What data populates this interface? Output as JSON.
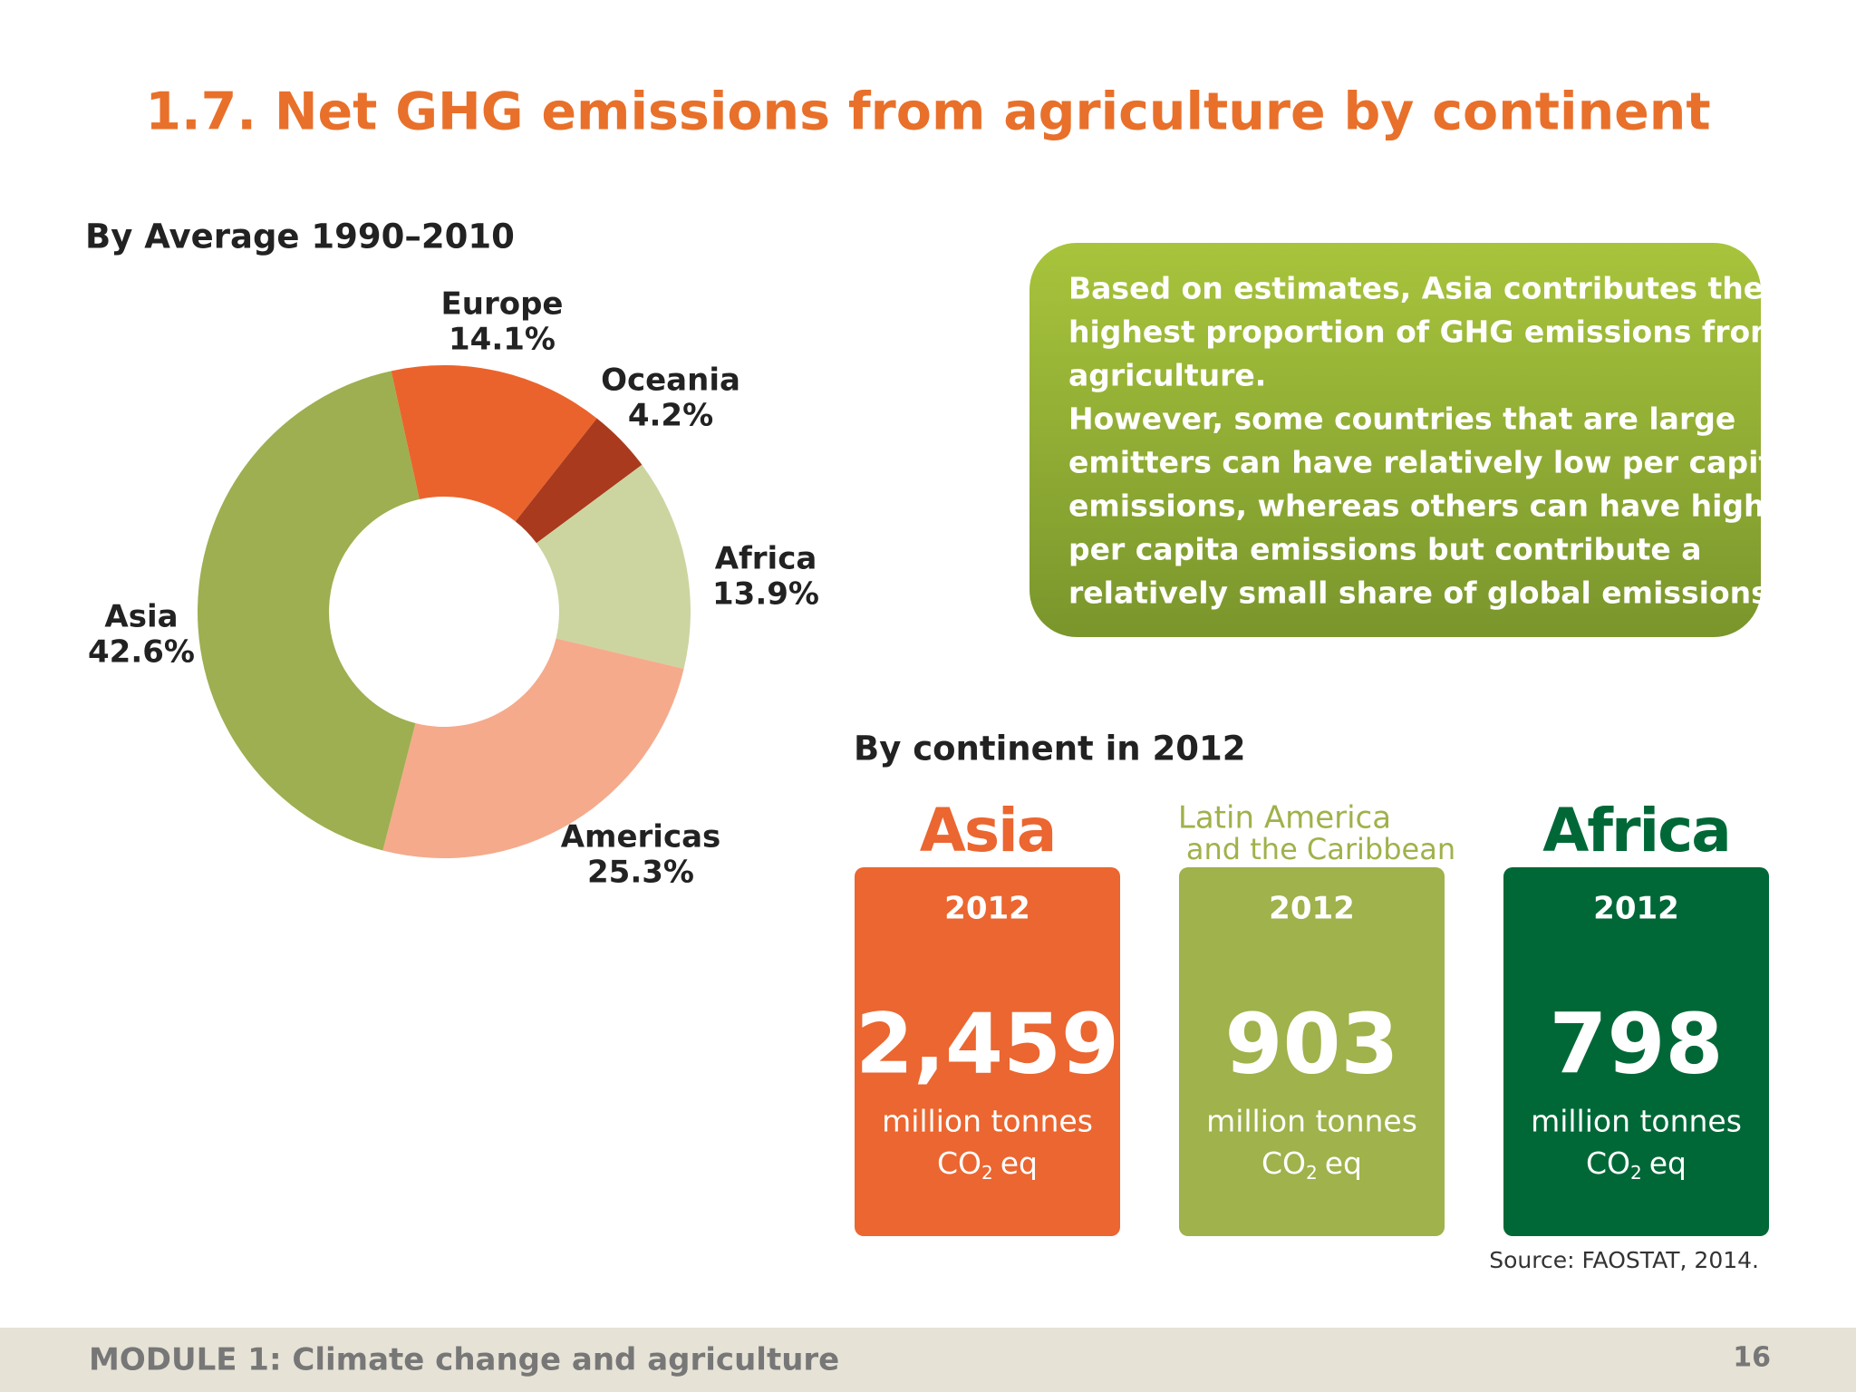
{
  "title": "1.7. Net GHG emissions from agriculture by continent",
  "chart_data": {
    "type": "donut",
    "title": "By Average 1990–2010",
    "categories": [
      "Europe",
      "Oceania",
      "Africa",
      "Americas",
      "Asia"
    ],
    "values": [
      14.1,
      4.2,
      13.9,
      25.3,
      42.6
    ],
    "value_labels": [
      "14.1%",
      "4.2%",
      "13.9%",
      "25.3%",
      "42.6%"
    ],
    "colors": [
      "#eb632c",
      "#aa3a1d",
      "#ccd5a0",
      "#f5aa8c",
      "#9daf50"
    ]
  },
  "callout": {
    "lines": [
      "Based on estimates, Asia contributes the",
      "highest proportion of GHG emissions from",
      "agriculture.",
      "However, some countries that are large",
      "emitters can have relatively low per capita",
      "emissions, whereas others can have high",
      "per capita emissions but contribute a",
      "relatively small share of global emissions."
    ]
  },
  "cards": {
    "title": "By continent in 2012",
    "items": [
      {
        "name": [
          "Asia"
        ],
        "year": "2012",
        "value": "2,459",
        "unit": "million tonnes",
        "co": "CO",
        "sub": "2",
        "eq": "eq",
        "color": "#eb6630",
        "name_color": "#eb6630"
      },
      {
        "name": [
          "Latin America",
          "and the Caribbean"
        ],
        "year": "2012",
        "value": "903",
        "unit": "million tonnes",
        "co": "CO",
        "sub": "2",
        "eq": "eq",
        "color": "#9fb24b",
        "name_color": "#9fb24b"
      },
      {
        "name": [
          "Africa"
        ],
        "year": "2012",
        "value": "798",
        "unit": "million tonnes",
        "co": "CO",
        "sub": "2",
        "eq": "eq",
        "color": "#006837",
        "name_color": "#006837"
      }
    ]
  },
  "source": "Source: FAOSTAT, 2014.",
  "footer": {
    "module": "MODULE 1: Climate change and agriculture",
    "page": "16"
  }
}
